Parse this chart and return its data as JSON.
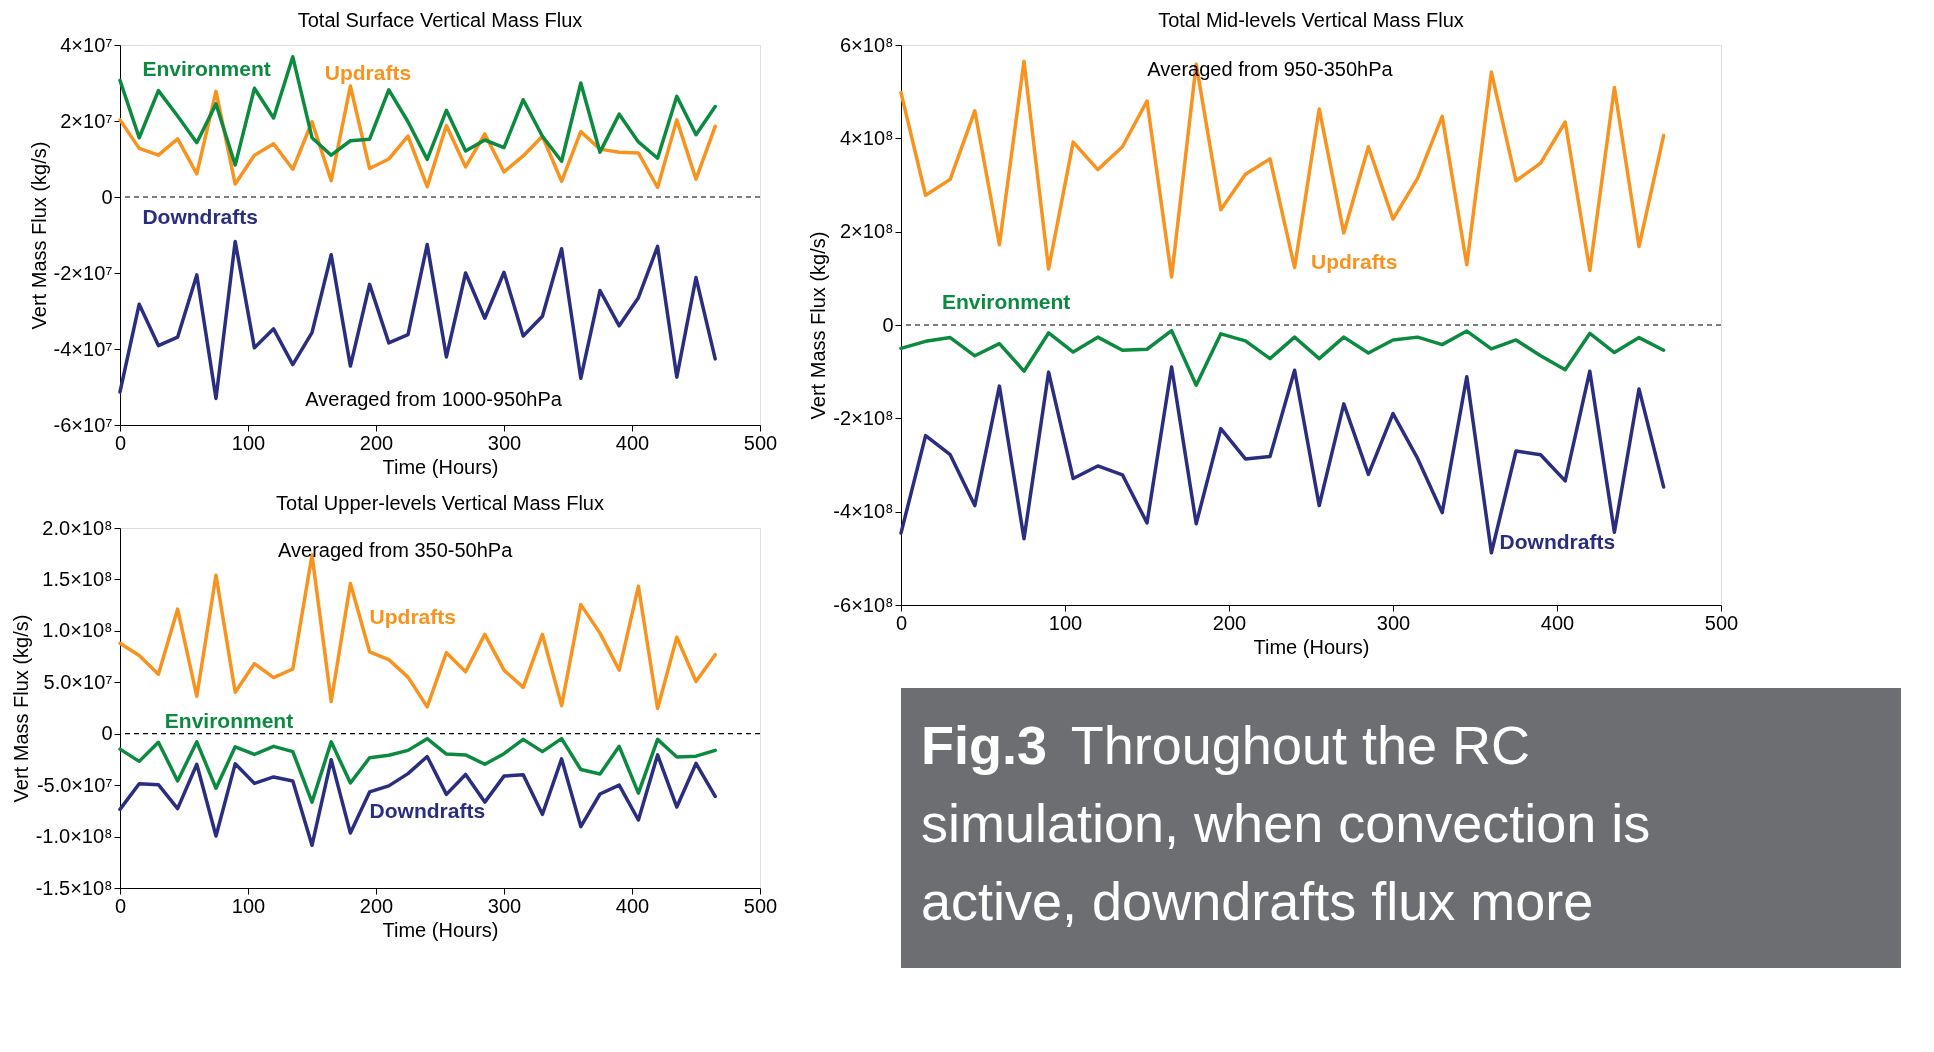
{
  "chart_data": [
    {
      "type": "line",
      "title": "Total Surface Vertical Mass Flux",
      "xlabel": "Time (Hours)",
      "ylabel": "Vert Mass Flux (kg/s)",
      "annotations": [
        "Averaged from 1000-950hPa"
      ],
      "x": [
        0,
        15,
        30,
        45,
        60,
        75,
        90,
        105,
        120,
        135,
        150,
        165,
        180,
        195,
        210,
        225,
        240,
        255,
        270,
        285,
        300,
        315,
        330,
        345,
        360,
        375,
        390,
        405,
        420,
        435,
        450,
        465
      ],
      "xlim": [
        0,
        500
      ],
      "xticks": [
        0,
        100,
        200,
        300,
        400,
        500
      ],
      "ylim": [
        -60000000.0,
        40000000.0
      ],
      "yticks": [
        {
          "value": -60000000.0,
          "label": "-6×10⁷"
        },
        {
          "value": -40000000.0,
          "label": "-4×10⁷"
        },
        {
          "value": -20000000.0,
          "label": "-2×10⁷"
        },
        0,
        {
          "value": 20000000.0,
          "label": "2×10⁷"
        },
        {
          "value": 40000000.0,
          "label": "4×10⁷"
        }
      ],
      "grid": false,
      "legend": false,
      "marker": "none",
      "line_style": "solid",
      "ref_lines": [
        {
          "axis": "y",
          "value": 0,
          "color": "#000000",
          "line_style": "dashed"
        }
      ],
      "series": [
        {
          "name": "Updrafts",
          "color": "#f7931e",
          "values": [
            20300000.0,
            12800000.0,
            11000000.0,
            15300000.0,
            6100000.0,
            27800000.0,
            3400000.0,
            11000000.0,
            14000000.0,
            7300000.0,
            19800000.0,
            4300000.0,
            29200000.0,
            7500000.0,
            10000000.0,
            16000000.0,
            2700000.0,
            18800000.0,
            7900000.0,
            16600000.0,
            6600000.0,
            10800000.0,
            16000000.0,
            4100000.0,
            17200000.0,
            12600000.0,
            11800000.0,
            11600000.0,
            2500000.0,
            20300000.0,
            4700000.0,
            18600000.0
          ]
        },
        {
          "name": "Environment",
          "color": "#0c8a3f",
          "values": [
            30700000.0,
            15600000.0,
            28000000.0,
            21300000.0,
            14300000.0,
            24500000.0,
            8400000.0,
            28600000.0,
            20800000.0,
            36900000.0,
            15600000.0,
            11000000.0,
            14800000.0,
            15200000.0,
            28200000.0,
            19800000.0,
            9900000.0,
            22800000.0,
            12100000.0,
            15000000.0,
            13000000.0,
            25600000.0,
            16000000.0,
            9400000.0,
            30000000.0,
            11800000.0,
            21800000.0,
            14500000.0,
            10200000.0,
            26500000.0,
            16400000.0,
            23800000.0
          ]
        },
        {
          "name": "Downdrafts",
          "color": "#2b2d7f",
          "values": [
            -51300000.0,
            -28200000.0,
            -39100000.0,
            -36900000.0,
            -20500000.0,
            -53000000.0,
            -11700000.0,
            -39700000.0,
            -34700000.0,
            -44100000.0,
            -35700000.0,
            -15200000.0,
            -44500000.0,
            -23000000.0,
            -38400000.0,
            -36200000.0,
            -12500000.0,
            -42100000.0,
            -20000000.0,
            -31900000.0,
            -19800000.0,
            -36600000.0,
            -31400000.0,
            -13600000.0,
            -47700000.0,
            -24600000.0,
            -33900000.0,
            -26500000.0,
            -13000000.0,
            -47400000.0,
            -21200000.0,
            -42600000.0
          ]
        }
      ]
    },
    {
      "type": "line",
      "title": "Total Upper-levels Vertical Mass Flux",
      "xlabel": "Time (Hours)",
      "ylabel": "Vert Mass Flux (kg/s)",
      "annotations": [
        "Averaged from 350-50hPa"
      ],
      "x": [
        0,
        15,
        30,
        45,
        60,
        75,
        90,
        105,
        120,
        135,
        150,
        165,
        180,
        195,
        210,
        225,
        240,
        255,
        270,
        285,
        300,
        315,
        330,
        345,
        360,
        375,
        390,
        405,
        420,
        435,
        450,
        465
      ],
      "xlim": [
        0,
        500
      ],
      "xticks": [
        0,
        100,
        200,
        300,
        400,
        500
      ],
      "ylim": [
        -150000000.0,
        200000000.0
      ],
      "yticks": [
        {
          "value": -150000000.0,
          "label": "-1.5×10⁸"
        },
        {
          "value": -100000000.0,
          "label": "-1.0×10⁸"
        },
        {
          "value": -50000000.0,
          "label": "-5.0×10⁷"
        },
        0,
        {
          "value": 50000000.0,
          "label": "5.0×10⁷"
        },
        {
          "value": 100000000.0,
          "label": "1.0×10⁸"
        },
        {
          "value": 150000000.0,
          "label": "1.5×10⁸"
        },
        {
          "value": 200000000.0,
          "label": "2.0×10⁸"
        }
      ],
      "grid": false,
      "legend": false,
      "marker": "none",
      "line_style": "solid",
      "ref_lines": [
        {
          "axis": "y",
          "value": 0,
          "color": "#000000",
          "line_style": "dashed"
        }
      ],
      "series": [
        {
          "name": "Updrafts",
          "color": "#f7931e",
          "values": [
            87900000.0,
            76000000.0,
            57800000.0,
            121100000.0,
            36400000.0,
            154000000.0,
            40400000.0,
            68100000.0,
            54600000.0,
            62900000.0,
            173800000.0,
            31300000.0,
            146100000.0,
            79600000.0,
            72000000.0,
            55000000.0,
            26100000.0,
            78800000.0,
            60200000.0,
            96600000.0,
            61800000.0,
            45100000.0,
            96600000.0,
            27300000.0,
            125500000.0,
            97800000.0,
            61800000.0,
            143300000.0,
            24500000.0,
            93800000.0,
            50700000.0,
            76800000.0
          ]
        },
        {
          "name": "Environment",
          "color": "#0c8a3f",
          "values": [
            -15000000.0,
            -26900000.0,
            -8300000.0,
            -45900000.0,
            -7900000.0,
            -53000000.0,
            -12700000.0,
            -20200000.0,
            -12300000.0,
            -17400000.0,
            -66500000.0,
            -7900000.0,
            -47900000.0,
            -23400000.0,
            -21000000.0,
            -16200000.0,
            -4800000.0,
            -19800000.0,
            -20600000.0,
            -29700000.0,
            -19400000.0,
            -5500000.0,
            -17400000.0,
            -4800000.0,
            -34800000.0,
            -39200000.0,
            -12300000.0,
            -57800000.0,
            -5500000.0,
            -22600000.0,
            -21800000.0,
            -16200000.0
          ]
        },
        {
          "name": "Downdrafts",
          "color": "#2b2d7f",
          "values": [
            -73600000.0,
            -48700000.0,
            -49500000.0,
            -72800000.0,
            -29700000.0,
            -99400000.0,
            -29300000.0,
            -48300000.0,
            -42000000.0,
            -45900000.0,
            -108500000.0,
            -25300000.0,
            -96600000.0,
            -56600000.0,
            -50700000.0,
            -38800000.0,
            -22200000.0,
            -59000000.0,
            -39600000.0,
            -66500000.0,
            -41200000.0,
            -40000000.0,
            -78400000.0,
            -24500000.0,
            -90300000.0,
            -58600000.0,
            -49900000.0,
            -83900000.0,
            -20600000.0,
            -71300000.0,
            -28900000.0,
            -61000000.0
          ]
        }
      ]
    },
    {
      "type": "line",
      "title": "Total Mid-levels Vertical Mass Flux",
      "xlabel": "Time (Hours)",
      "ylabel": "Vert Mass Flux (kg/s)",
      "annotations": [
        "Averaged from 950-350hPa"
      ],
      "x": [
        0,
        15,
        30,
        45,
        60,
        75,
        90,
        105,
        120,
        135,
        150,
        165,
        180,
        195,
        210,
        225,
        240,
        255,
        270,
        285,
        300,
        315,
        330,
        345,
        360,
        375,
        390,
        405,
        420,
        435,
        450,
        465
      ],
      "xlim": [
        0,
        500
      ],
      "xticks": [
        0,
        100,
        200,
        300,
        400,
        500
      ],
      "ylim": [
        -600000000.0,
        600000000.0
      ],
      "yticks": [
        {
          "value": -600000000.0,
          "label": "-6×10⁸"
        },
        {
          "value": -400000000.0,
          "label": "-4×10⁸"
        },
        {
          "value": -200000000.0,
          "label": "-2×10⁸"
        },
        0,
        {
          "value": 200000000.0,
          "label": "2×10⁸"
        },
        {
          "value": 400000000.0,
          "label": "4×10⁸"
        },
        {
          "value": 600000000.0,
          "label": "6×10⁸"
        }
      ],
      "grid": false,
      "legend": false,
      "marker": "none",
      "line_style": "solid",
      "ref_lines": [
        {
          "axis": "y",
          "value": 0,
          "color": "#000000",
          "line_style": "dashed"
        }
      ],
      "series": [
        {
          "name": "Updrafts",
          "color": "#f7931e",
          "values": [
            498000000.0,
            278000000.0,
            312000000.0,
            459000000.0,
            172000000.0,
            565000000.0,
            120000000.0,
            392000000.0,
            333000000.0,
            382000000.0,
            480000000.0,
            103000000.0,
            559000000.0,
            247000000.0,
            323000000.0,
            356000000.0,
            123000000.0,
            463000000.0,
            197000000.0,
            382000000.0,
            227000000.0,
            314000000.0,
            447000000.0,
            129000000.0,
            542000000.0,
            309000000.0,
            347000000.0,
            435000000.0,
            117000000.0,
            509000000.0,
            168000000.0,
            406000000.0
          ]
        },
        {
          "name": "Environment",
          "color": "#0c8a3f",
          "values": [
            -50000000.0,
            -35000000.0,
            -27000000.0,
            -66000000.0,
            -40000000.0,
            -99000000.0,
            -17000000.0,
            -58000000.0,
            -26000000.0,
            -54000000.0,
            -52000000.0,
            -12000000.0,
            -129000000.0,
            -19000000.0,
            -34000000.0,
            -72000000.0,
            -26000000.0,
            -72000000.0,
            -26000000.0,
            -60000000.0,
            -32000000.0,
            -26000000.0,
            -42000000.0,
            -13000000.0,
            -51000000.0,
            -32000000.0,
            -66000000.0,
            -96000000.0,
            -18000000.0,
            -59000000.0,
            -27000000.0,
            -54000000.0
          ]
        },
        {
          "name": "Downdrafts",
          "color": "#2b2d7f",
          "values": [
            -446000000.0,
            -237000000.0,
            -278000000.0,
            -387000000.0,
            -131000000.0,
            -458000000.0,
            -101000000.0,
            -329000000.0,
            -302000000.0,
            -321000000.0,
            -424000000.0,
            -90000000.0,
            -426000000.0,
            -222000000.0,
            -287000000.0,
            -282000000.0,
            -97000000.0,
            -387000000.0,
            -169000000.0,
            -320000000.0,
            -190000000.0,
            -286000000.0,
            -402000000.0,
            -111000000.0,
            -488000000.0,
            -270000000.0,
            -278000000.0,
            -334000000.0,
            -99000000.0,
            -444000000.0,
            -137000000.0,
            -347000000.0
          ]
        }
      ]
    },
    {
      "type": "other",
      "title": "Fig.3",
      "color": "#6d6e71",
      "annotations": [
        "Throughout the RC",
        "simulation, when convection is",
        "active, downdrafts flux more"
      ]
    }
  ]
}
